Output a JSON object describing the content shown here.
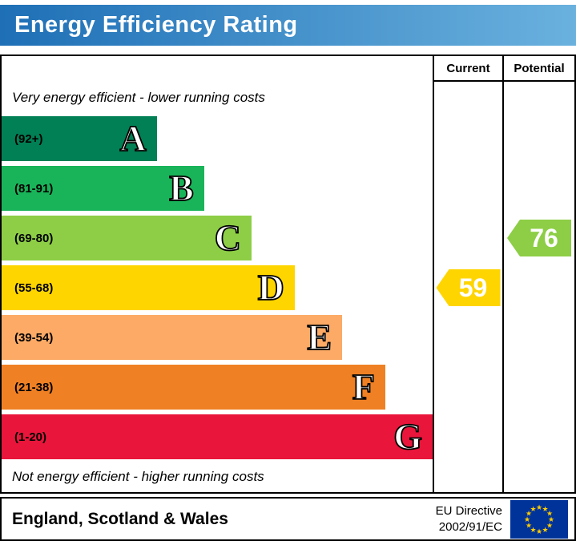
{
  "header": {
    "title": "Energy Efficiency Rating"
  },
  "table": {
    "current_label": "Current",
    "potential_label": "Potential",
    "top_note": "Very energy efficient - lower running costs",
    "bottom_note": "Not energy efficient - higher running costs"
  },
  "chart_data": {
    "type": "bar",
    "title": "Energy Efficiency Rating",
    "categories": [
      "A",
      "B",
      "C",
      "D",
      "E",
      "F",
      "G"
    ],
    "bands": [
      {
        "letter": "A",
        "range": "(92+)",
        "color": "#008054",
        "width_pct": 36
      },
      {
        "letter": "B",
        "range": "(81-91)",
        "color": "#19b459",
        "width_pct": 47
      },
      {
        "letter": "C",
        "range": "(69-80)",
        "color": "#8dce46",
        "width_pct": 58
      },
      {
        "letter": "D",
        "range": "(55-68)",
        "color": "#ffd500",
        "width_pct": 68
      },
      {
        "letter": "E",
        "range": "(39-54)",
        "color": "#fcaa65",
        "width_pct": 79
      },
      {
        "letter": "F",
        "range": "(21-38)",
        "color": "#ef8023",
        "width_pct": 89
      },
      {
        "letter": "G",
        "range": "(1-20)",
        "color": "#e9153b",
        "width_pct": 100
      }
    ],
    "current": {
      "value": 59,
      "band": "D",
      "color": "#ffd500"
    },
    "potential": {
      "value": 76,
      "band": "C",
      "color": "#8dce46"
    },
    "xlabel": "",
    "ylabel": "",
    "legend_position": "none",
    "grid": false
  },
  "footer": {
    "region": "England, Scotland & Wales",
    "directive_line1": "EU Directive",
    "directive_line2": "2002/91/EC",
    "eu_flag": {
      "background": "#003399",
      "star_color": "#ffcc00",
      "star_count": 12
    }
  }
}
